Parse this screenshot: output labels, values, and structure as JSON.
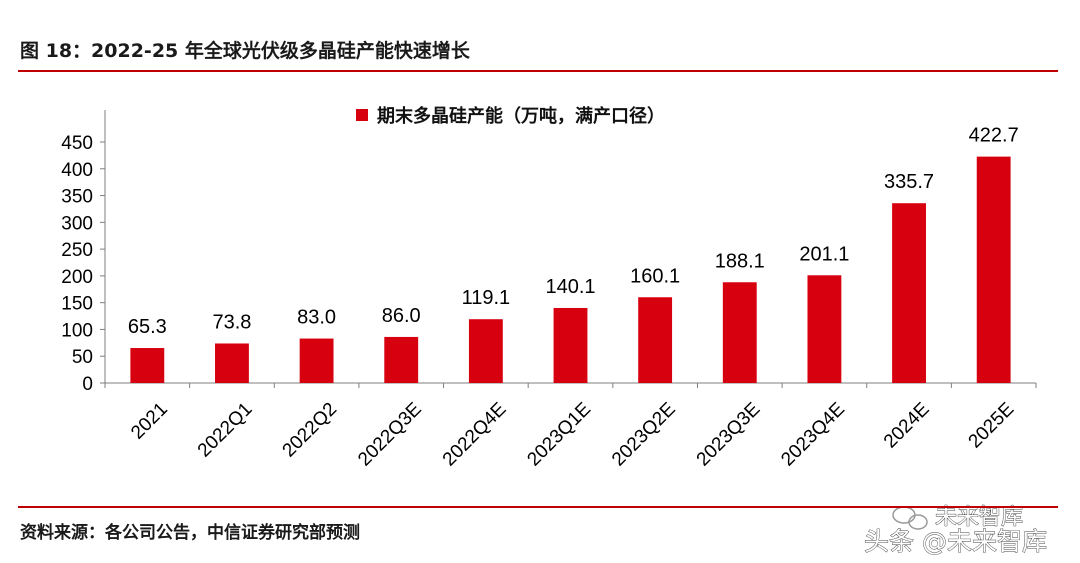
{
  "figure": {
    "title": "图 18：2022-25 年全球光伏级多晶硅产能快速增长",
    "source": "资料来源：各公司公告，中信证券研究部预测",
    "rule_color": "#C00000"
  },
  "watermark": {
    "text_top": "未来智库",
    "text_bottom": "头条 @未来智库"
  },
  "chart_data": {
    "type": "bar",
    "categories": [
      "2021",
      "2022Q1",
      "2022Q2",
      "2022Q3E",
      "2022Q4E",
      "2023Q1E",
      "2023Q2E",
      "2023Q3E",
      "2023Q4E",
      "2024E",
      "2025E"
    ],
    "series": [
      {
        "name": "期末多晶硅产能（万吨，满产口径）",
        "values": [
          65.3,
          73.8,
          83.0,
          86.0,
          119.1,
          140.1,
          160.1,
          188.1,
          201.1,
          335.7,
          422.7
        ],
        "labels": [
          "65.3",
          "73.8",
          "83.0",
          "86.0",
          "119.1",
          "140.1",
          "160.1",
          "188.1",
          "201.1",
          "335.7",
          "422.7"
        ],
        "color": "#D7000F"
      }
    ],
    "yticks": [
      "0",
      "50",
      "100",
      "150",
      "200",
      "250",
      "300",
      "350",
      "400",
      "450"
    ],
    "ylim": [
      0,
      450
    ],
    "grid": false,
    "legend_position": "top-center",
    "xlabel": "",
    "ylabel": "",
    "title": ""
  }
}
